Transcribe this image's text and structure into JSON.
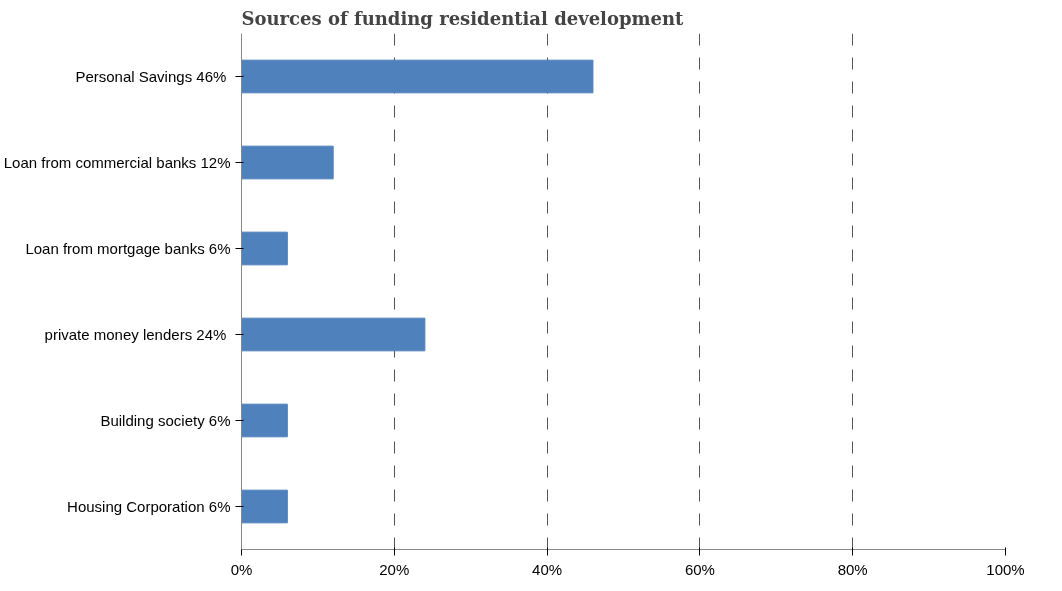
{
  "chart_data": {
    "type": "bar",
    "orientation": "horizontal",
    "title": "Sources of funding residential development",
    "categories": [
      "Personal Savings  46%",
      "Loan from commercial banks 12%",
      "Loan from mortgage banks 6%",
      "private money lenders  24%",
      "Building society 6%",
      "Housing Corporation 6%"
    ],
    "values": [
      46,
      12,
      6,
      24,
      6,
      6
    ],
    "color": "#4f81bd",
    "xlim": [
      0,
      100
    ],
    "xticks": [
      {
        "value": 0,
        "label": "0%"
      },
      {
        "value": 20,
        "label": "20%"
      },
      {
        "value": 40,
        "label": "40%"
      },
      {
        "value": 60,
        "label": "60%"
      },
      {
        "value": 80,
        "label": "80%"
      },
      {
        "value": 100,
        "label": "100%"
      }
    ],
    "grid": "x",
    "line_style": "dashed"
  }
}
